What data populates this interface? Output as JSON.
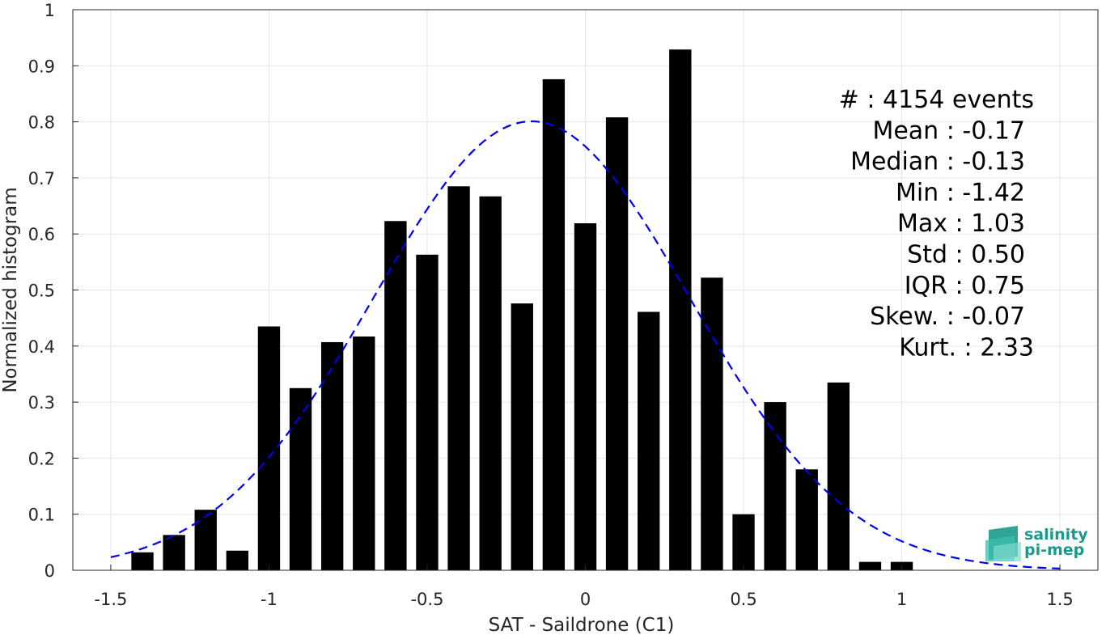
{
  "chart_data": {
    "type": "bar",
    "xlabel": "SAT - Saildrone (C1)",
    "ylabel": "Normalized histogram",
    "xlim": [
      -1.62,
      1.62
    ],
    "ylim": [
      0,
      1
    ],
    "xticks": [
      -1.5,
      -1,
      -0.5,
      0,
      0.5,
      1,
      1.5
    ],
    "xtick_labels": [
      "-1.5",
      "-1",
      "-0.5",
      "0",
      "0.5",
      "1",
      "1.5"
    ],
    "yticks": [
      0,
      0.1,
      0.2,
      0.3,
      0.4,
      0.5,
      0.6,
      0.7,
      0.8,
      0.9,
      1
    ],
    "ytick_labels": [
      "0",
      "0.1",
      "0.2",
      "0.3",
      "0.4",
      "0.5",
      "0.6",
      "0.7",
      "0.8",
      "0.9",
      "1"
    ],
    "grid": true,
    "bar_width": 0.07,
    "bars": {
      "x": [
        -1.4,
        -1.3,
        -1.2,
        -1.1,
        -1.0,
        -0.9,
        -0.8,
        -0.7,
        -0.6,
        -0.5,
        -0.4,
        -0.3,
        -0.2,
        -0.1,
        0.0,
        0.1,
        0.2,
        0.3,
        0.4,
        0.5,
        0.6,
        0.7,
        0.8,
        0.9,
        1.0
      ],
      "values": [
        0.032,
        0.063,
        0.108,
        0.035,
        0.435,
        0.325,
        0.407,
        0.417,
        0.623,
        0.563,
        0.685,
        0.667,
        0.476,
        0.876,
        0.619,
        0.808,
        0.461,
        0.929,
        0.522,
        0.1,
        0.3,
        0.18,
        0.335,
        0.015,
        0.015
      ],
      "color": "#000000"
    },
    "fit_curve": {
      "style": "dashed",
      "color": "#0000ee",
      "mean": -0.17,
      "std": 0.5,
      "peak": 0.801,
      "x_range": [
        -1.5,
        1.5
      ]
    },
    "stats_box": {
      "lines": [
        "#  : 4154 events",
        "Mean : -0.17",
        "Median : -0.13",
        "Min : -1.42",
        "Max : 1.03",
        "Std : 0.50",
        "IQR : 0.75",
        "Skew. : -0.07",
        "Kurt. : 2.33"
      ]
    },
    "logo": {
      "line1": "salinity",
      "line2": "pi-mep",
      "color": "#1a9a8a"
    }
  }
}
